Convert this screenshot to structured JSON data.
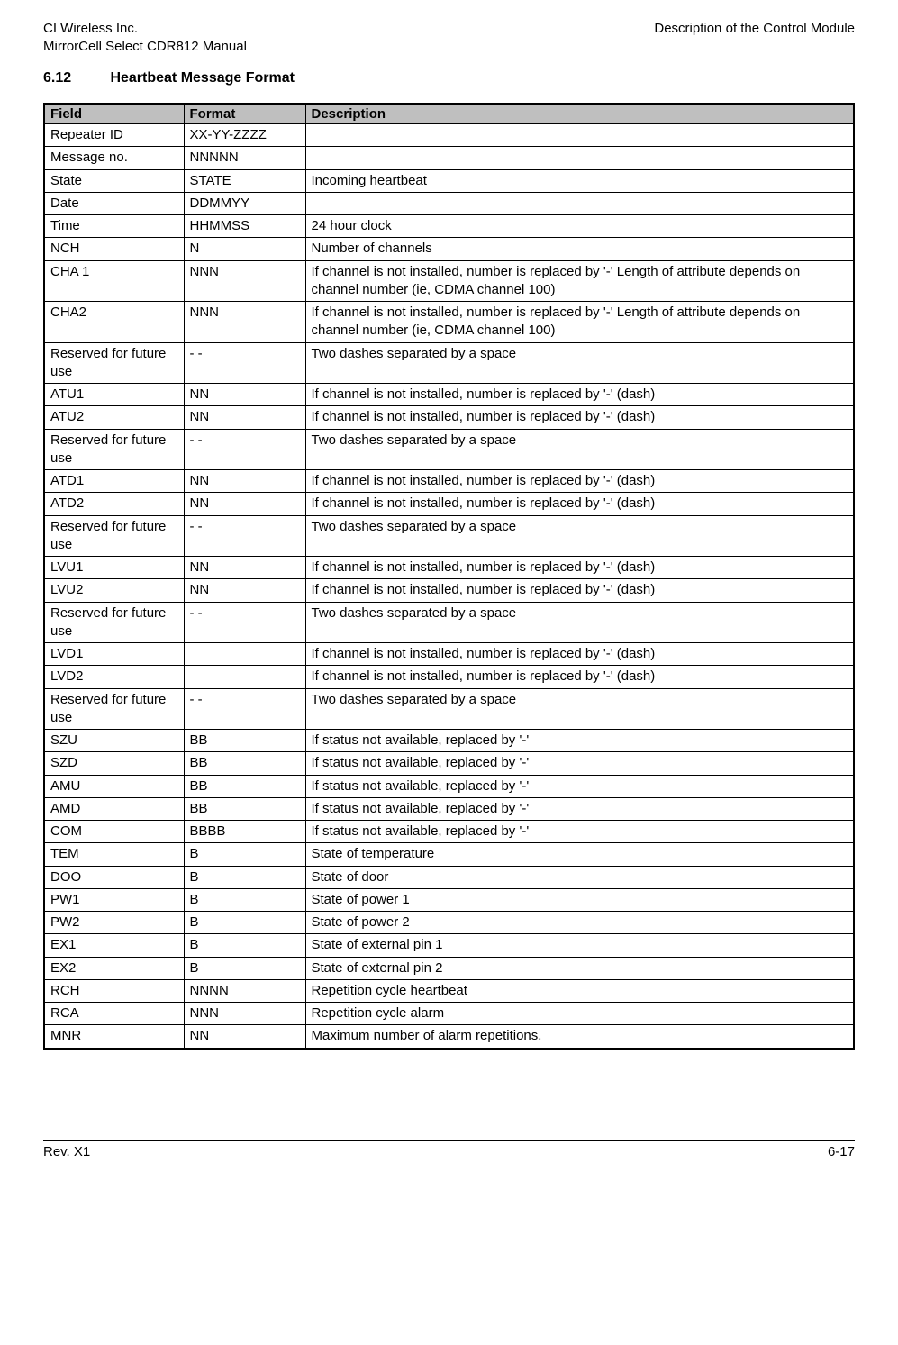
{
  "header": {
    "company": "CI Wireless Inc.",
    "manual": "MirrorCell Select CDR812 Manual",
    "chapter": "Description of the Control Module"
  },
  "section": {
    "number": "6.12",
    "title": "Heartbeat Message Format"
  },
  "table": {
    "headers": [
      "Field",
      "Format",
      "Description"
    ],
    "rows": [
      [
        "Repeater ID",
        "XX-YY-ZZZZ",
        ""
      ],
      [
        "Message no.",
        "NNNNN",
        ""
      ],
      [
        "State",
        "STATE",
        "Incoming heartbeat"
      ],
      [
        "Date",
        "DDMMYY",
        ""
      ],
      [
        "Time",
        "HHMMSS",
        "24 hour clock"
      ],
      [
        "NCH",
        "N",
        "Number of channels"
      ],
      [
        "CHA 1",
        "NNN",
        "If channel is not installed, number is replaced by '-' Length of attribute depends on channel number (ie, CDMA channel 100)"
      ],
      [
        "CHA2",
        "NNN",
        "If channel is not installed, number is replaced by '-' Length of attribute depends on channel number (ie, CDMA channel 100)"
      ],
      [
        "Reserved for future use",
        "- -",
        "Two dashes separated by a space"
      ],
      [
        "ATU1",
        "NN",
        "If channel is not installed, number is replaced by '-' (dash)"
      ],
      [
        "ATU2",
        "NN",
        "If channel is not installed, number is replaced by '-' (dash)"
      ],
      [
        "Reserved for future use",
        "- -",
        "Two dashes separated by a space"
      ],
      [
        "ATD1",
        "NN",
        "If channel is not installed, number is replaced by '-' (dash)"
      ],
      [
        "ATD2",
        "NN",
        "If channel is not installed, number is replaced by '-' (dash)"
      ],
      [
        "Reserved for future use",
        "- -",
        "Two dashes separated by a space"
      ],
      [
        "LVU1",
        "NN",
        "If channel is not installed, number is replaced by '-' (dash)"
      ],
      [
        "LVU2",
        "NN",
        "If channel is not installed, number is replaced by '-' (dash)"
      ],
      [
        "Reserved for future use",
        "- -",
        "Two dashes separated by a space"
      ],
      [
        "LVD1",
        "",
        "If channel is not installed, number is replaced by '-' (dash)"
      ],
      [
        "LVD2",
        "",
        "If channel is not installed, number is replaced by '-' (dash)"
      ],
      [
        "Reserved for future use",
        "- -",
        "Two dashes separated by a space"
      ],
      [
        "SZU",
        "BB",
        "If status not available, replaced by '-'"
      ],
      [
        "SZD",
        "BB",
        "If status not available, replaced by '-'"
      ],
      [
        "AMU",
        "BB",
        "If status not available, replaced by '-'"
      ],
      [
        "AMD",
        "BB",
        "If status not available, replaced by '-'"
      ],
      [
        "COM",
        "BBBB",
        "If status not available, replaced by '-'"
      ],
      [
        "TEM",
        "B",
        "State of temperature"
      ],
      [
        "DOO",
        "B",
        "State of door"
      ],
      [
        "PW1",
        "B",
        "State of power 1"
      ],
      [
        "PW2",
        "B",
        "State of power 2"
      ],
      [
        "EX1",
        "B",
        "State of external pin 1"
      ],
      [
        "EX2",
        "B",
        "State of external pin 2"
      ],
      [
        "RCH",
        "NNNN",
        "Repetition cycle heartbeat"
      ],
      [
        "RCA",
        "NNN",
        "Repetition cycle alarm"
      ],
      [
        "MNR",
        "NN",
        "Maximum number of alarm repetitions."
      ]
    ]
  },
  "footer": {
    "rev": "Rev. X1",
    "page": "6-17"
  },
  "colors": {
    "header_bg": "#bfbfbf",
    "border": "#000000",
    "text": "#000000",
    "background": "#ffffff"
  }
}
